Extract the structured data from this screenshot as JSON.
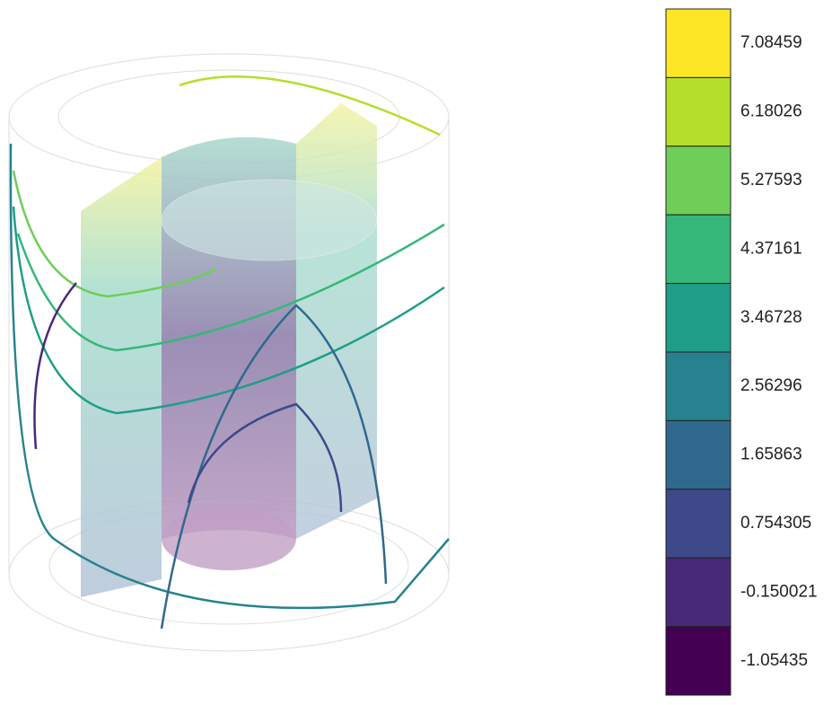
{
  "colorbar": {
    "levels": [
      {
        "label": "7.08459",
        "color": "#fde725"
      },
      {
        "label": "6.18026",
        "color": "#b5de2b"
      },
      {
        "label": "5.27593",
        "color": "#6ece58"
      },
      {
        "label": "4.37161",
        "color": "#35b779"
      },
      {
        "label": "3.46728",
        "color": "#1f9e89"
      },
      {
        "label": "2.56296",
        "color": "#26828e"
      },
      {
        "label": "1.65863",
        "color": "#31688e"
      },
      {
        "label": "0.754305",
        "color": "#3e4989"
      },
      {
        "label": "-0.150021",
        "color": "#482878"
      },
      {
        "label": "-1.05435",
        "color": "#440154"
      }
    ]
  }
}
